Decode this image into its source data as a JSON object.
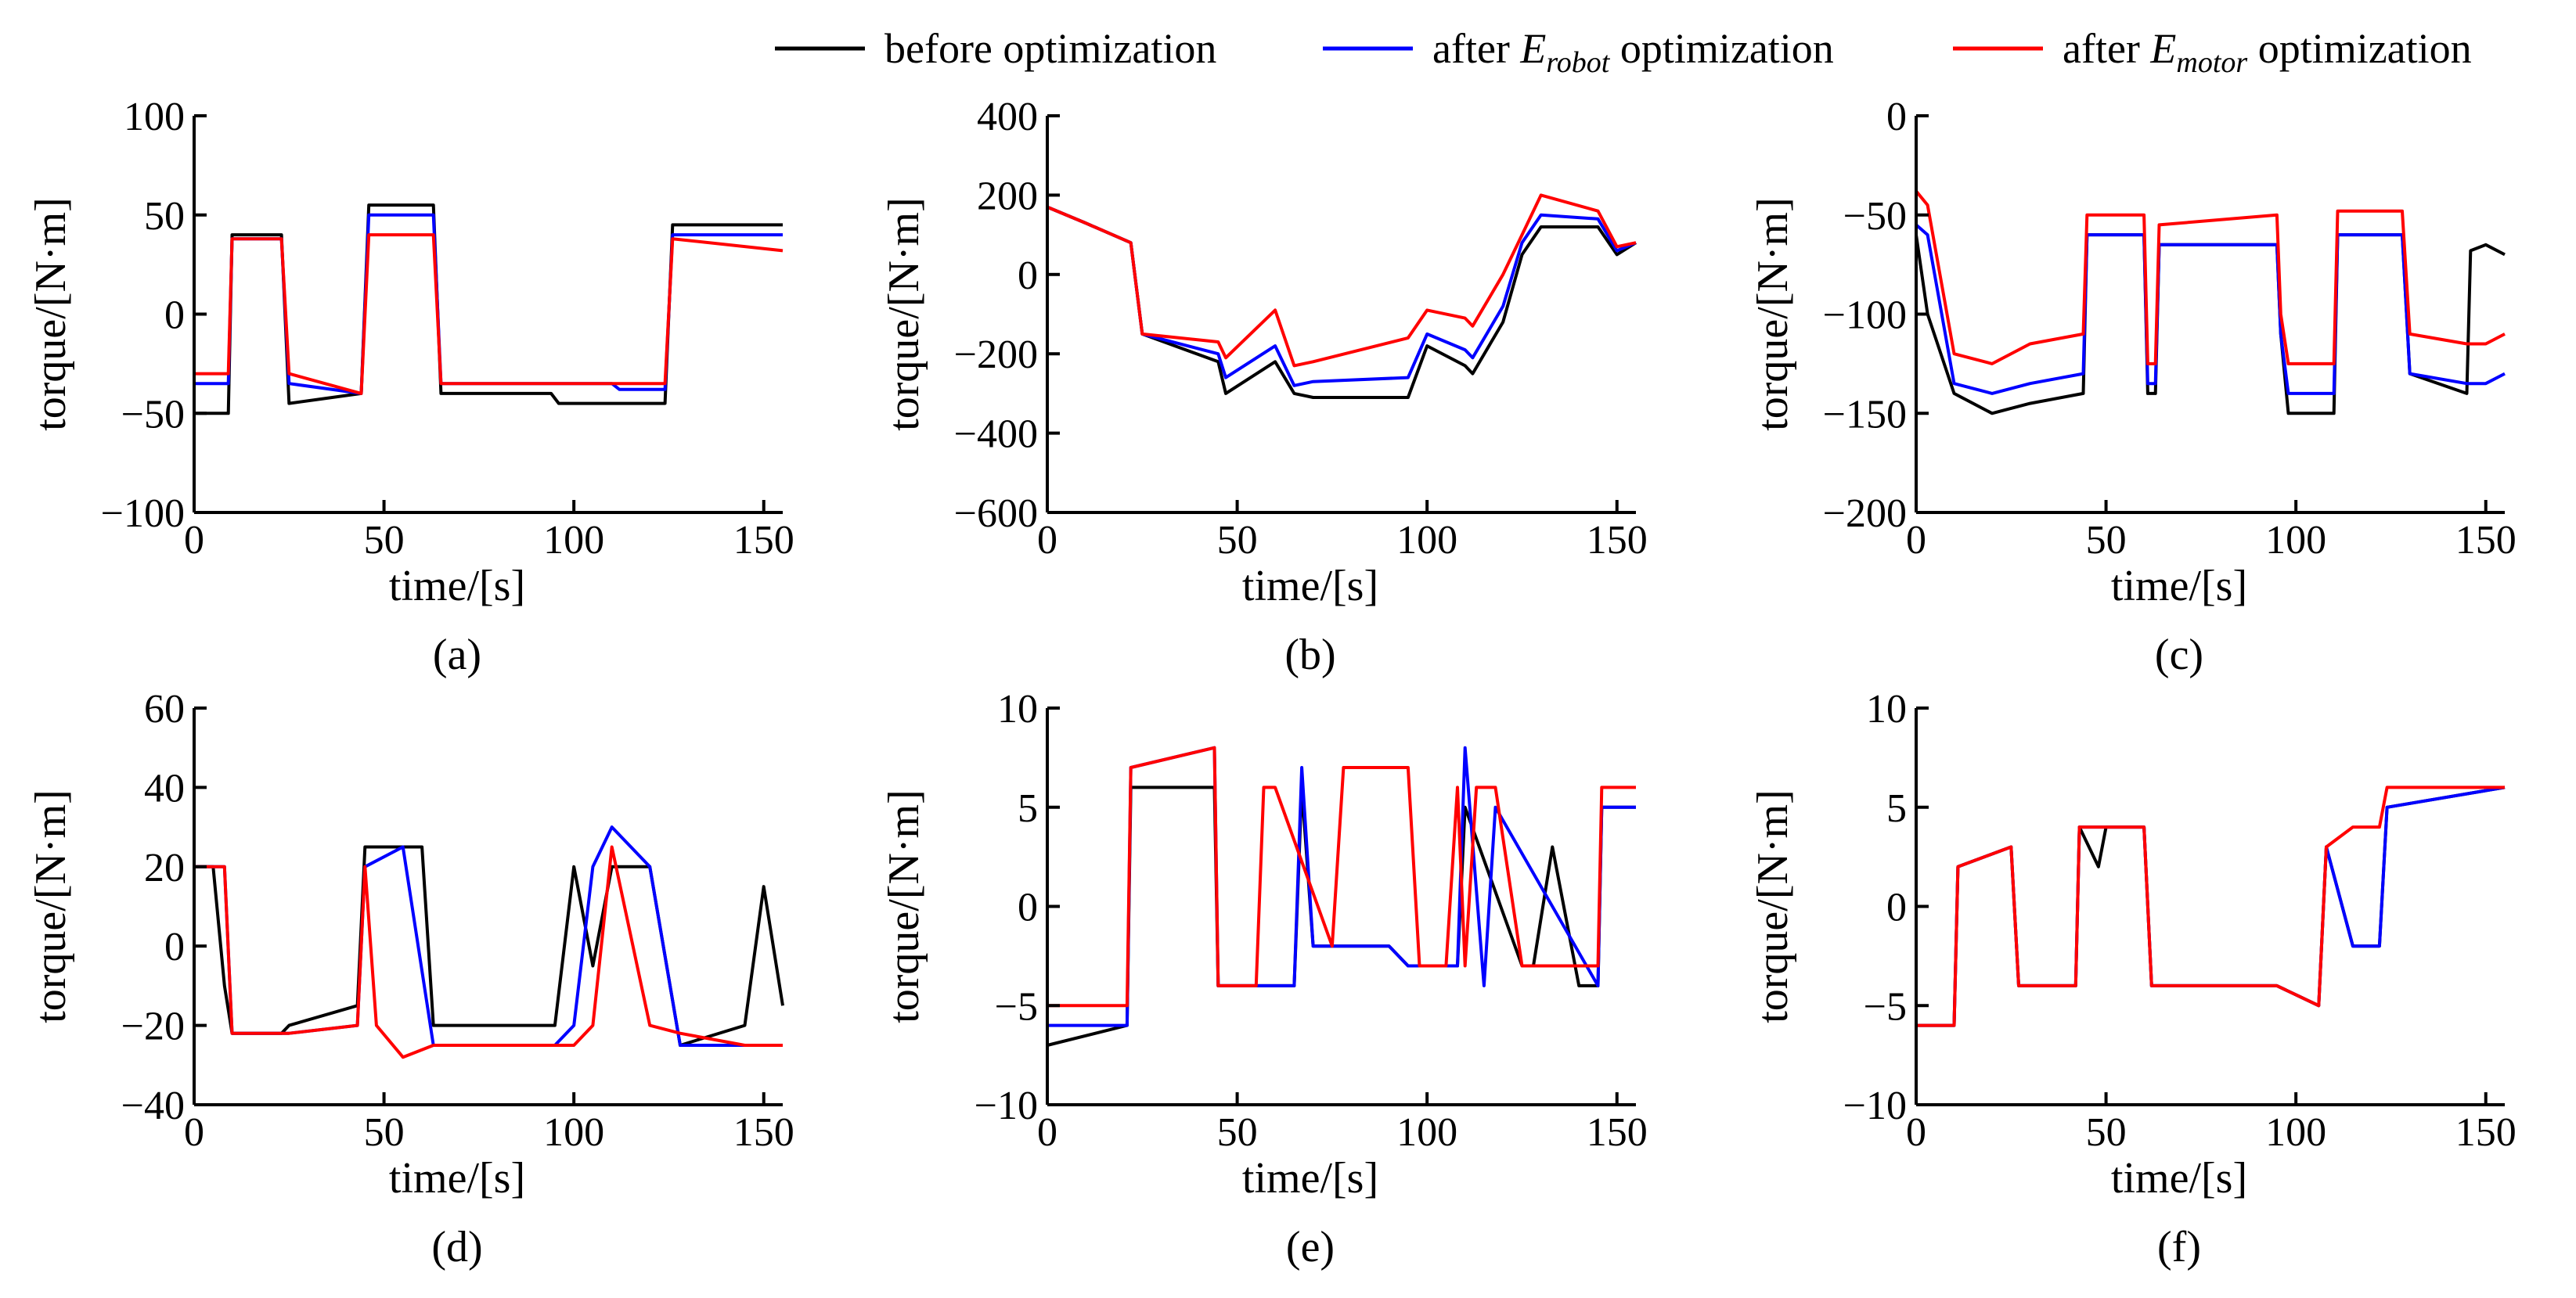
{
  "legend": [
    {
      "prefix": "before optimization",
      "sub": "",
      "suffix": "",
      "color": "#000000"
    },
    {
      "prefix": "after ",
      "sub": "robot",
      "suffix": " optimization",
      "color": "#0000ff"
    },
    {
      "prefix": "after ",
      "sub": "motor",
      "suffix": " optimization",
      "color": "#ff0000"
    }
  ],
  "chart_data": [
    {
      "panel": "(a)",
      "type": "line",
      "xlabel": "time/[s]",
      "ylabel": "torque/[N·m]",
      "xlim": [
        0,
        155
      ],
      "ylim": [
        -100,
        100
      ],
      "xticks": [
        0,
        50,
        100,
        150
      ],
      "yticks": [
        -100,
        -50,
        0,
        50,
        100
      ],
      "ytick_labels": [
        "−100",
        "−50",
        "0",
        "50",
        "100"
      ],
      "series": [
        {
          "name": "before optimization",
          "color": "#000000",
          "x": [
            0,
            9,
            10,
            23,
            25,
            44,
            46,
            63,
            65,
            94,
            96,
            110,
            112,
            124,
            126,
            155
          ],
          "y": [
            -50,
            -50,
            40,
            40,
            -45,
            -40,
            55,
            55,
            -40,
            -40,
            -45,
            -45,
            -45,
            -45,
            45,
            45
          ]
        },
        {
          "name": "after E_robot optimization",
          "color": "#0000ff",
          "x": [
            0,
            9,
            10,
            23,
            25,
            44,
            46,
            63,
            65,
            94,
            96,
            110,
            112,
            124,
            126,
            155
          ],
          "y": [
            -35,
            -35,
            38,
            38,
            -35,
            -40,
            50,
            50,
            -35,
            -35,
            -35,
            -35,
            -38,
            -38,
            40,
            40
          ]
        },
        {
          "name": "after E_motor optimization",
          "color": "#ff0000",
          "x": [
            0,
            9,
            10,
            23,
            25,
            44,
            46,
            63,
            65,
            94,
            96,
            110,
            112,
            124,
            126,
            155
          ],
          "y": [
            -30,
            -30,
            38,
            38,
            -30,
            -40,
            40,
            40,
            -35,
            -35,
            -35,
            -35,
            -35,
            -35,
            38,
            32
          ]
        }
      ]
    },
    {
      "panel": "(b)",
      "type": "line",
      "xlabel": "time/[s]",
      "ylabel": "torque/[N·m]",
      "xlim": [
        0,
        155
      ],
      "ylim": [
        -600,
        400
      ],
      "xticks": [
        0,
        50,
        100,
        150
      ],
      "yticks": [
        -600,
        -400,
        -200,
        0,
        200,
        400
      ],
      "ytick_labels": [
        "−600",
        "−400",
        "−200",
        "0",
        "200",
        "400"
      ],
      "series": [
        {
          "name": "before optimization",
          "color": "#000000",
          "x": [
            0,
            10,
            22,
            25,
            45,
            47,
            60,
            65,
            70,
            95,
            100,
            110,
            112,
            120,
            125,
            130,
            145,
            150,
            155
          ],
          "y": [
            170,
            130,
            80,
            -150,
            -220,
            -300,
            -220,
            -300,
            -310,
            -310,
            -180,
            -230,
            -250,
            -120,
            50,
            120,
            120,
            50,
            80
          ]
        },
        {
          "name": "after E_robot optimization",
          "color": "#0000ff",
          "x": [
            0,
            10,
            22,
            25,
            45,
            47,
            60,
            65,
            70,
            95,
            100,
            110,
            112,
            120,
            125,
            130,
            145,
            150,
            155
          ],
          "y": [
            170,
            130,
            80,
            -150,
            -200,
            -260,
            -180,
            -280,
            -270,
            -260,
            -150,
            -190,
            -210,
            -80,
            80,
            150,
            140,
            60,
            80
          ]
        },
        {
          "name": "after E_motor optimization",
          "color": "#ff0000",
          "x": [
            0,
            10,
            22,
            25,
            45,
            47,
            60,
            65,
            70,
            95,
            100,
            110,
            112,
            120,
            125,
            130,
            145,
            150,
            155
          ],
          "y": [
            170,
            130,
            80,
            -150,
            -170,
            -210,
            -90,
            -230,
            -220,
            -160,
            -90,
            -110,
            -130,
            0,
            100,
            200,
            160,
            70,
            80
          ]
        }
      ]
    },
    {
      "panel": "(c)",
      "type": "line",
      "xlabel": "time/[s]",
      "ylabel": "torque/[N·m]",
      "xlim": [
        0,
        155
      ],
      "ylim": [
        -200,
        0
      ],
      "xticks": [
        0,
        50,
        100,
        150
      ],
      "yticks": [
        -200,
        -150,
        -100,
        -50,
        0
      ],
      "ytick_labels": [
        "−200",
        "−150",
        "−100",
        "−50",
        "0"
      ],
      "series": [
        {
          "name": "before optimization",
          "color": "#000000",
          "x": [
            0,
            3,
            10,
            20,
            30,
            44,
            45,
            60,
            61,
            63,
            64,
            95,
            96,
            98,
            110,
            111,
            128,
            130,
            145,
            146,
            150,
            155
          ],
          "y": [
            -60,
            -100,
            -140,
            -150,
            -145,
            -140,
            -60,
            -60,
            -140,
            -140,
            -65,
            -65,
            -110,
            -150,
            -150,
            -60,
            -60,
            -130,
            -140,
            -68,
            -65,
            -70
          ]
        },
        {
          "name": "after E_robot optimization",
          "color": "#0000ff",
          "x": [
            0,
            3,
            10,
            20,
            30,
            44,
            45,
            60,
            61,
            63,
            64,
            95,
            96,
            98,
            110,
            111,
            128,
            130,
            145,
            146,
            150,
            155
          ],
          "y": [
            -55,
            -60,
            -135,
            -140,
            -135,
            -130,
            -60,
            -60,
            -135,
            -135,
            -65,
            -65,
            -110,
            -140,
            -140,
            -60,
            -60,
            -130,
            -135,
            -135,
            -135,
            -130
          ]
        },
        {
          "name": "after E_motor optimization",
          "color": "#ff0000",
          "x": [
            0,
            3,
            10,
            20,
            30,
            44,
            45,
            60,
            61,
            63,
            64,
            95,
            96,
            98,
            110,
            111,
            128,
            130,
            145,
            146,
            150,
            155
          ],
          "y": [
            -38,
            -45,
            -120,
            -125,
            -115,
            -110,
            -50,
            -50,
            -125,
            -125,
            -55,
            -50,
            -100,
            -125,
            -125,
            -48,
            -48,
            -110,
            -115,
            -115,
            -115,
            -110
          ]
        }
      ]
    },
    {
      "panel": "(d)",
      "type": "line",
      "xlabel": "time/[s]",
      "ylabel": "torque/[N·m]",
      "xlim": [
        0,
        155
      ],
      "ylim": [
        -40,
        60
      ],
      "xticks": [
        0,
        50,
        100,
        150
      ],
      "yticks": [
        -40,
        -20,
        0,
        20,
        40,
        60
      ],
      "ytick_labels": [
        "−40",
        "−20",
        "0",
        "20",
        "40",
        "60"
      ],
      "series": [
        {
          "name": "before optimization",
          "color": "#000000",
          "x": [
            0,
            5,
            8,
            10,
            23,
            25,
            43,
            45,
            60,
            63,
            95,
            100,
            105,
            110,
            120,
            128,
            145,
            150,
            155
          ],
          "y": [
            20,
            20,
            -10,
            -22,
            -22,
            -20,
            -15,
            25,
            25,
            -20,
            -20,
            20,
            -5,
            20,
            20,
            -25,
            -20,
            15,
            -15
          ]
        },
        {
          "name": "after E_robot optimization",
          "color": "#0000ff",
          "x": [
            0,
            5,
            8,
            10,
            23,
            25,
            43,
            45,
            55,
            63,
            95,
            100,
            105,
            110,
            120,
            128,
            145,
            150,
            155
          ],
          "y": [
            20,
            20,
            20,
            -22,
            -22,
            -22,
            -20,
            20,
            25,
            -25,
            -25,
            -20,
            20,
            30,
            20,
            -25,
            -25,
            -25,
            -25
          ]
        },
        {
          "name": "after E_motor optimization",
          "color": "#ff0000",
          "x": [
            0,
            5,
            8,
            10,
            23,
            25,
            43,
            45,
            48,
            55,
            63,
            95,
            100,
            105,
            110,
            120,
            128,
            145,
            150,
            155
          ],
          "y": [
            20,
            20,
            20,
            -22,
            -22,
            -22,
            -20,
            20,
            -20,
            -28,
            -25,
            -25,
            -25,
            -20,
            25,
            -20,
            -22,
            -25,
            -25,
            -25
          ]
        }
      ]
    },
    {
      "panel": "(e)",
      "type": "line",
      "xlabel": "time/[s]",
      "ylabel": "torque/[N·m]",
      "xlim": [
        0,
        155
      ],
      "ylim": [
        -10,
        10
      ],
      "xticks": [
        0,
        50,
        100,
        150
      ],
      "yticks": [
        -10,
        -5,
        0,
        5,
        10
      ],
      "ytick_labels": [
        "−10",
        "−5",
        "0",
        "5",
        "10"
      ],
      "series": [
        {
          "name": "before optimization",
          "color": "#000000",
          "x": [
            0,
            21,
            22,
            44,
            45,
            65,
            67,
            70,
            90,
            95,
            100,
            108,
            110,
            125,
            128,
            133,
            140,
            145,
            146,
            155
          ],
          "y": [
            -7,
            -6,
            6,
            6,
            -4,
            -4,
            6,
            -2,
            -2,
            -3,
            -3,
            -3,
            5,
            -3,
            -3,
            3,
            -4,
            -4,
            5,
            5
          ]
        },
        {
          "name": "after E_robot optimization",
          "color": "#0000ff",
          "x": [
            0,
            21,
            22,
            44,
            45,
            65,
            67,
            70,
            90,
            95,
            100,
            108,
            110,
            115,
            118,
            145,
            146,
            155
          ],
          "y": [
            -6,
            -6,
            7,
            8,
            -4,
            -4,
            7,
            -2,
            -2,
            -3,
            -3,
            -3,
            8,
            -4,
            5,
            -4,
            5,
            5
          ]
        },
        {
          "name": "after E_motor optimization",
          "color": "#ff0000",
          "x": [
            0,
            21,
            22,
            44,
            45,
            55,
            57,
            60,
            75,
            78,
            95,
            98,
            105,
            108,
            110,
            113,
            118,
            125,
            145,
            146,
            155
          ],
          "y": [
            -5,
            -5,
            7,
            8,
            -4,
            -4,
            6,
            6,
            -2,
            7,
            7,
            -3,
            -3,
            6,
            -3,
            6,
            6,
            -3,
            -3,
            6,
            6
          ]
        }
      ]
    },
    {
      "panel": "(f)",
      "type": "line",
      "xlabel": "time/[s]",
      "ylabel": "torque/[N·m]",
      "xlim": [
        0,
        155
      ],
      "ylim": [
        -10,
        10
      ],
      "xticks": [
        0,
        50,
        100,
        150
      ],
      "yticks": [
        -10,
        -5,
        0,
        5,
        10
      ],
      "ytick_labels": [
        "−10",
        "−5",
        "0",
        "5",
        "10"
      ],
      "series": [
        {
          "name": "before optimization",
          "color": "#000000",
          "x": [
            0,
            10,
            11,
            25,
            27,
            42,
            43,
            48,
            50,
            60,
            62,
            95,
            106,
            108,
            115,
            122,
            124,
            155
          ],
          "y": [
            -6,
            -6,
            2,
            3,
            -4,
            -4,
            4,
            2,
            4,
            4,
            -4,
            -4,
            -5,
            3,
            -2,
            -2,
            5,
            6
          ]
        },
        {
          "name": "after E_robot optimization",
          "color": "#0000ff",
          "x": [
            0,
            10,
            11,
            25,
            27,
            42,
            43,
            60,
            62,
            95,
            106,
            108,
            115,
            122,
            124,
            155
          ],
          "y": [
            -6,
            -6,
            2,
            3,
            -4,
            -4,
            4,
            4,
            -4,
            -4,
            -5,
            3,
            -2,
            -2,
            5,
            6
          ]
        },
        {
          "name": "after E_motor optimization",
          "color": "#ff0000",
          "x": [
            0,
            10,
            11,
            25,
            27,
            42,
            43,
            60,
            62,
            95,
            106,
            108,
            115,
            122,
            124,
            155
          ],
          "y": [
            -6,
            -6,
            2,
            3,
            -4,
            -4,
            4,
            4,
            -4,
            -4,
            -5,
            3,
            4,
            4,
            6,
            6
          ]
        }
      ]
    }
  ]
}
